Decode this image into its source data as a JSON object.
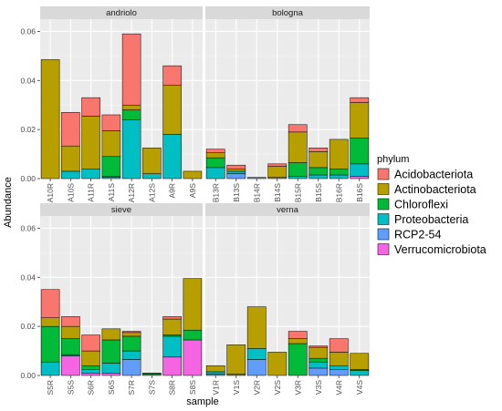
{
  "chart_data": {
    "type": "bar",
    "stacked": true,
    "xlabel": "sample",
    "ylabel": "Abundance",
    "ylim": [
      0,
      0.065
    ],
    "y_ticks": [
      0.0,
      0.02,
      0.04,
      0.06
    ],
    "y_tick_labels": [
      "0.00",
      "0.02",
      "0.04",
      "0.06"
    ],
    "legend": {
      "title": "phylum",
      "position": "right",
      "items": [
        {
          "name": "Acidobacteriota",
          "color": "#F8766D"
        },
        {
          "name": "Actinobacteriota",
          "color": "#B79F00"
        },
        {
          "name": "Chloroflexi",
          "color": "#00BA38"
        },
        {
          "name": "Proteobacteria",
          "color": "#00BFC4"
        },
        {
          "name": "RCP2-54",
          "color": "#619CFF"
        },
        {
          "name": "Verrucomicrobiota",
          "color": "#F564E3"
        }
      ]
    },
    "facets": [
      {
        "name": "andriolo",
        "samples": [
          {
            "label": "A10R",
            "Acidobacteriota": 0,
            "Actinobacteriota": 0.0485,
            "Chloroflexi": 0,
            "Proteobacteria": 0,
            "RCP2-54": 0,
            "Verrucomicrobiota": 0
          },
          {
            "label": "A10S",
            "Acidobacteriota": 0.0137,
            "Actinobacteriota": 0.0103,
            "Chloroflexi": 0,
            "Proteobacteria": 0.003,
            "RCP2-54": 0,
            "Verrucomicrobiota": 0
          },
          {
            "label": "A11R",
            "Acidobacteriota": 0.0075,
            "Actinobacteriota": 0.0215,
            "Chloroflexi": 0,
            "Proteobacteria": 0.004,
            "RCP2-54": 0,
            "Verrucomicrobiota": 0
          },
          {
            "label": "A11S",
            "Acidobacteriota": 0.0065,
            "Actinobacteriota": 0.0105,
            "Chloroflexi": 0.008,
            "Proteobacteria": 0.0005,
            "RCP2-54": 0.0005,
            "Verrucomicrobiota": 0
          },
          {
            "label": "A12R",
            "Acidobacteriota": 0.029,
            "Actinobacteriota": 0.002,
            "Chloroflexi": 0.004,
            "Proteobacteria": 0.024,
            "RCP2-54": 0,
            "Verrucomicrobiota": 0
          },
          {
            "label": "A12S",
            "Acidobacteriota": 0,
            "Actinobacteriota": 0.0105,
            "Chloroflexi": 0,
            "Proteobacteria": 0.002,
            "RCP2-54": 0,
            "Verrucomicrobiota": 0
          },
          {
            "label": "A9R",
            "Acidobacteriota": 0.008,
            "Actinobacteriota": 0.02,
            "Chloroflexi": 0,
            "Proteobacteria": 0.018,
            "RCP2-54": 0,
            "Verrucomicrobiota": 0
          },
          {
            "label": "A9S",
            "Acidobacteriota": 0,
            "Actinobacteriota": 0.003,
            "Chloroflexi": 0,
            "Proteobacteria": 0,
            "RCP2-54": 0,
            "Verrucomicrobiota": 0
          }
        ]
      },
      {
        "name": "bologna",
        "samples": [
          {
            "label": "B13R",
            "Acidobacteriota": 0.0015,
            "Actinobacteriota": 0.002,
            "Chloroflexi": 0.004,
            "Proteobacteria": 0.0045,
            "RCP2-54": 0,
            "Verrucomicrobiota": 0
          },
          {
            "label": "B13S",
            "Acidobacteriota": 0.0015,
            "Actinobacteriota": 0.001,
            "Chloroflexi": 0,
            "Proteobacteria": 0.001,
            "RCP2-54": 0.002,
            "Verrucomicrobiota": 0
          },
          {
            "label": "B14R",
            "Acidobacteriota": 0,
            "Actinobacteriota": 0,
            "Chloroflexi": 0,
            "Proteobacteria": 0.0005,
            "RCP2-54": 0,
            "Verrucomicrobiota": 0
          },
          {
            "label": "B14S",
            "Acidobacteriota": 0.001,
            "Actinobacteriota": 0.0045,
            "Chloroflexi": 0,
            "Proteobacteria": 0.0005,
            "RCP2-54": 0,
            "Verrucomicrobiota": 0
          },
          {
            "label": "B15R",
            "Acidobacteriota": 0.003,
            "Actinobacteriota": 0.0125,
            "Chloroflexi": 0.0055,
            "Proteobacteria": 0.001,
            "RCP2-54": 0,
            "Verrucomicrobiota": 0
          },
          {
            "label": "B15S",
            "Acidobacteriota": 0.0015,
            "Actinobacteriota": 0.0065,
            "Chloroflexi": 0.003,
            "Proteobacteria": 0.0015,
            "RCP2-54": 0,
            "Verrucomicrobiota": 0
          },
          {
            "label": "B16R",
            "Acidobacteriota": 0,
            "Actinobacteriota": 0.012,
            "Chloroflexi": 0.0025,
            "Proteobacteria": 0.0015,
            "RCP2-54": 0,
            "Verrucomicrobiota": 0
          },
          {
            "label": "B16S",
            "Acidobacteriota": 0.002,
            "Actinobacteriota": 0.0145,
            "Chloroflexi": 0.0105,
            "Proteobacteria": 0.005,
            "RCP2-54": 0,
            "Verrucomicrobiota": 0.001
          }
        ]
      },
      {
        "name": "sieve",
        "samples": [
          {
            "label": "S5R",
            "Acidobacteriota": 0.0115,
            "Actinobacteriota": 0.0035,
            "Chloroflexi": 0.0145,
            "Proteobacteria": 0.0055,
            "RCP2-54": 0,
            "Verrucomicrobiota": 0
          },
          {
            "label": "S5S",
            "Acidobacteriota": 0.004,
            "Actinobacteriota": 0.005,
            "Chloroflexi": 0.0065,
            "Proteobacteria": 0.0005,
            "RCP2-54": 0,
            "Verrucomicrobiota": 0.008
          },
          {
            "label": "S6R",
            "Acidobacteriota": 0.0065,
            "Actinobacteriota": 0.006,
            "Chloroflexi": 0.0015,
            "Proteobacteria": 0.0015,
            "RCP2-54": 0,
            "Verrucomicrobiota": 0.001
          },
          {
            "label": "S6S",
            "Acidobacteriota": 0,
            "Actinobacteriota": 0.0045,
            "Chloroflexi": 0.0095,
            "Proteobacteria": 0.004,
            "RCP2-54": 0,
            "Verrucomicrobiota": 0.001
          },
          {
            "label": "S7R",
            "Acidobacteriota": 0.0005,
            "Actinobacteriota": 0.0015,
            "Chloroflexi": 0.006,
            "Proteobacteria": 0.0035,
            "RCP2-54": 0.0065,
            "Verrucomicrobiota": 0
          },
          {
            "label": "S7S",
            "Acidobacteriota": 0,
            "Actinobacteriota": 0,
            "Chloroflexi": 0.0005,
            "Proteobacteria": 0.0005,
            "RCP2-54": 0,
            "Verrucomicrobiota": 0
          },
          {
            "label": "S8R",
            "Acidobacteriota": 0.001,
            "Actinobacteriota": 0.0065,
            "Chloroflexi": 0.0005,
            "Proteobacteria": 0.0085,
            "RCP2-54": 0,
            "Verrucomicrobiota": 0.0075
          },
          {
            "label": "S8S",
            "Acidobacteriota": 0,
            "Actinobacteriota": 0.021,
            "Chloroflexi": 0.004,
            "Proteobacteria": 0,
            "RCP2-54": 0,
            "Verrucomicrobiota": 0.0145
          }
        ]
      },
      {
        "name": "verna",
        "samples": [
          {
            "label": "V1R",
            "Acidobacteriota": 0,
            "Actinobacteriota": 0.0025,
            "Chloroflexi": 0,
            "Proteobacteria": 0.001,
            "RCP2-54": 0.0005,
            "Verrucomicrobiota": 0
          },
          {
            "label": "V1S",
            "Acidobacteriota": 0,
            "Actinobacteriota": 0.012,
            "Chloroflexi": 0.0005,
            "Proteobacteria": 0,
            "RCP2-54": 0,
            "Verrucomicrobiota": 0
          },
          {
            "label": "V2R",
            "Acidobacteriota": 0,
            "Actinobacteriota": 0.017,
            "Chloroflexi": 0,
            "Proteobacteria": 0.0045,
            "RCP2-54": 0.0065,
            "Verrucomicrobiota": 0
          },
          {
            "label": "V2S",
            "Acidobacteriota": 0,
            "Actinobacteriota": 0.0095,
            "Chloroflexi": 0,
            "Proteobacteria": 0,
            "RCP2-54": 0,
            "Verrucomicrobiota": 0
          },
          {
            "label": "V3R",
            "Acidobacteriota": 0.003,
            "Actinobacteriota": 0.002,
            "Chloroflexi": 0.013,
            "Proteobacteria": 0,
            "RCP2-54": 0,
            "Verrucomicrobiota": 0
          },
          {
            "label": "V3S",
            "Acidobacteriota": 0.0005,
            "Actinobacteriota": 0.0045,
            "Chloroflexi": 0.0015,
            "Proteobacteria": 0.0025,
            "RCP2-54": 0.003,
            "Verrucomicrobiota": 0
          },
          {
            "label": "V4R",
            "Acidobacteriota": 0.0055,
            "Actinobacteriota": 0.0055,
            "Chloroflexi": 0,
            "Proteobacteria": 0.0015,
            "RCP2-54": 0.0025,
            "Verrucomicrobiota": 0
          },
          {
            "label": "V4S",
            "Acidobacteriota": 0,
            "Actinobacteriota": 0.0065,
            "Chloroflexi": 0.0005,
            "Proteobacteria": 0.002,
            "RCP2-54": 0,
            "Verrucomicrobiota": 0
          }
        ]
      }
    ]
  }
}
